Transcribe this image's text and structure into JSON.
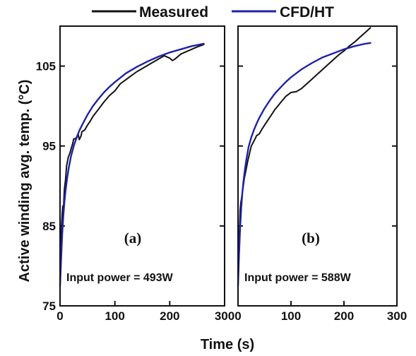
{
  "colors": {
    "measured": "#111111",
    "cfd": "#1f22a8",
    "axis": "#111111"
  },
  "legend": [
    {
      "name": "Measured",
      "color": "#111111"
    },
    {
      "name": "CFD/HT",
      "color": "#1f22a8"
    }
  ],
  "ylabel": "Active winding avg. temp. (°C)",
  "xlabel": "Time (s)",
  "chart_data": [
    {
      "type": "line",
      "panel_label": "(a)",
      "annotation": "Input power = 493W",
      "xlim": [
        0,
        300
      ],
      "ylim": [
        75,
        110
      ],
      "xticks": [
        0,
        100,
        200,
        300
      ],
      "xtick_labels": [
        "0",
        "100",
        "200",
        "300"
      ],
      "yticks": [
        75,
        85,
        95,
        105
      ],
      "ytick_labels": [
        "75",
        "85",
        "95",
        "105"
      ],
      "series": [
        {
          "name": "Measured",
          "color": "#111111",
          "x": [
            0,
            1,
            2,
            3,
            4,
            5,
            6,
            7,
            8,
            10,
            12,
            15,
            18,
            20,
            23,
            25,
            28,
            30,
            33,
            35,
            38,
            40,
            45,
            50,
            55,
            60,
            70,
            80,
            90,
            100,
            110,
            120,
            130,
            140,
            150,
            160,
            170,
            180,
            190,
            200,
            205,
            210,
            220,
            230,
            240,
            250,
            262
          ],
          "y": [
            77.5,
            80.5,
            83.2,
            85.2,
            86.6,
            87.5,
            86.8,
            88.2,
            89.6,
            90.8,
            92.5,
            93.6,
            94.1,
            94.6,
            95.3,
            95.9,
            95.9,
            96.1,
            96.5,
            95.8,
            96.2,
            96.8,
            97.0,
            97.6,
            98.1,
            98.7,
            99.6,
            100.5,
            101.3,
            101.9,
            102.8,
            103.3,
            103.8,
            104.3,
            104.7,
            105.1,
            105.5,
            105.9,
            106.3,
            106.0,
            105.7,
            105.9,
            106.5,
            106.8,
            107.1,
            107.4,
            107.7
          ]
        },
        {
          "name": "CFD/HT",
          "color": "#1f22a8",
          "x": [
            0,
            2,
            4,
            6,
            8,
            10,
            13,
            16,
            20,
            25,
            30,
            35,
            40,
            50,
            60,
            70,
            80,
            90,
            100,
            120,
            140,
            160,
            180,
            200,
            220,
            240,
            262
          ],
          "y": [
            77.5,
            81.0,
            84.0,
            86.3,
            88.0,
            89.4,
            91.0,
            92.3,
            93.7,
            95.0,
            96.0,
            96.9,
            97.6,
            98.9,
            100.0,
            100.9,
            101.7,
            102.4,
            103.0,
            104.1,
            104.9,
            105.6,
            106.2,
            106.7,
            107.1,
            107.5,
            107.8
          ]
        }
      ]
    },
    {
      "type": "line",
      "panel_label": "(b)",
      "annotation": "Input power = 588W",
      "xlim": [
        0,
        300
      ],
      "ylim": [
        75,
        110
      ],
      "xticks": [
        0,
        100,
        200,
        300
      ],
      "xtick_labels": [
        "0",
        "100",
        "200",
        "300"
      ],
      "yticks": [
        75,
        85,
        95,
        105
      ],
      "ytick_labels": [
        "",
        "",
        "",
        ""
      ],
      "series": [
        {
          "name": "Measured",
          "color": "#111111",
          "x": [
            0,
            1,
            2,
            3,
            4,
            5,
            7,
            9,
            12,
            15,
            18,
            20,
            25,
            30,
            35,
            40,
            45,
            50,
            55,
            60,
            70,
            80,
            90,
            100,
            110,
            120,
            130,
            140,
            150,
            160,
            170,
            180,
            190,
            200,
            210,
            220,
            230,
            240,
            250
          ],
          "y": [
            77.5,
            80.5,
            83.0,
            85.0,
            87.0,
            87.8,
            88.6,
            89.6,
            91.0,
            92.0,
            93.0,
            93.6,
            95.0,
            95.6,
            96.3,
            96.5,
            97.1,
            97.6,
            98.1,
            98.6,
            99.6,
            100.4,
            101.2,
            101.7,
            101.8,
            102.2,
            102.8,
            103.4,
            104.0,
            104.6,
            105.2,
            105.8,
            106.4,
            106.9,
            107.5,
            108.0,
            108.6,
            109.2,
            109.8
          ]
        },
        {
          "name": "CFD/HT",
          "color": "#1f22a8",
          "x": [
            0,
            2,
            4,
            6,
            8,
            10,
            13,
            16,
            20,
            25,
            30,
            35,
            40,
            50,
            60,
            70,
            80,
            90,
            100,
            120,
            140,
            160,
            180,
            200,
            220,
            240,
            250
          ],
          "y": [
            77.5,
            81.5,
            84.8,
            87.2,
            89.0,
            90.4,
            92.1,
            93.4,
            94.9,
            96.1,
            97.0,
            97.8,
            98.5,
            99.7,
            100.7,
            101.6,
            102.3,
            103.0,
            103.6,
            104.6,
            105.4,
            106.1,
            106.6,
            107.1,
            107.5,
            107.8,
            107.9
          ]
        }
      ]
    }
  ]
}
